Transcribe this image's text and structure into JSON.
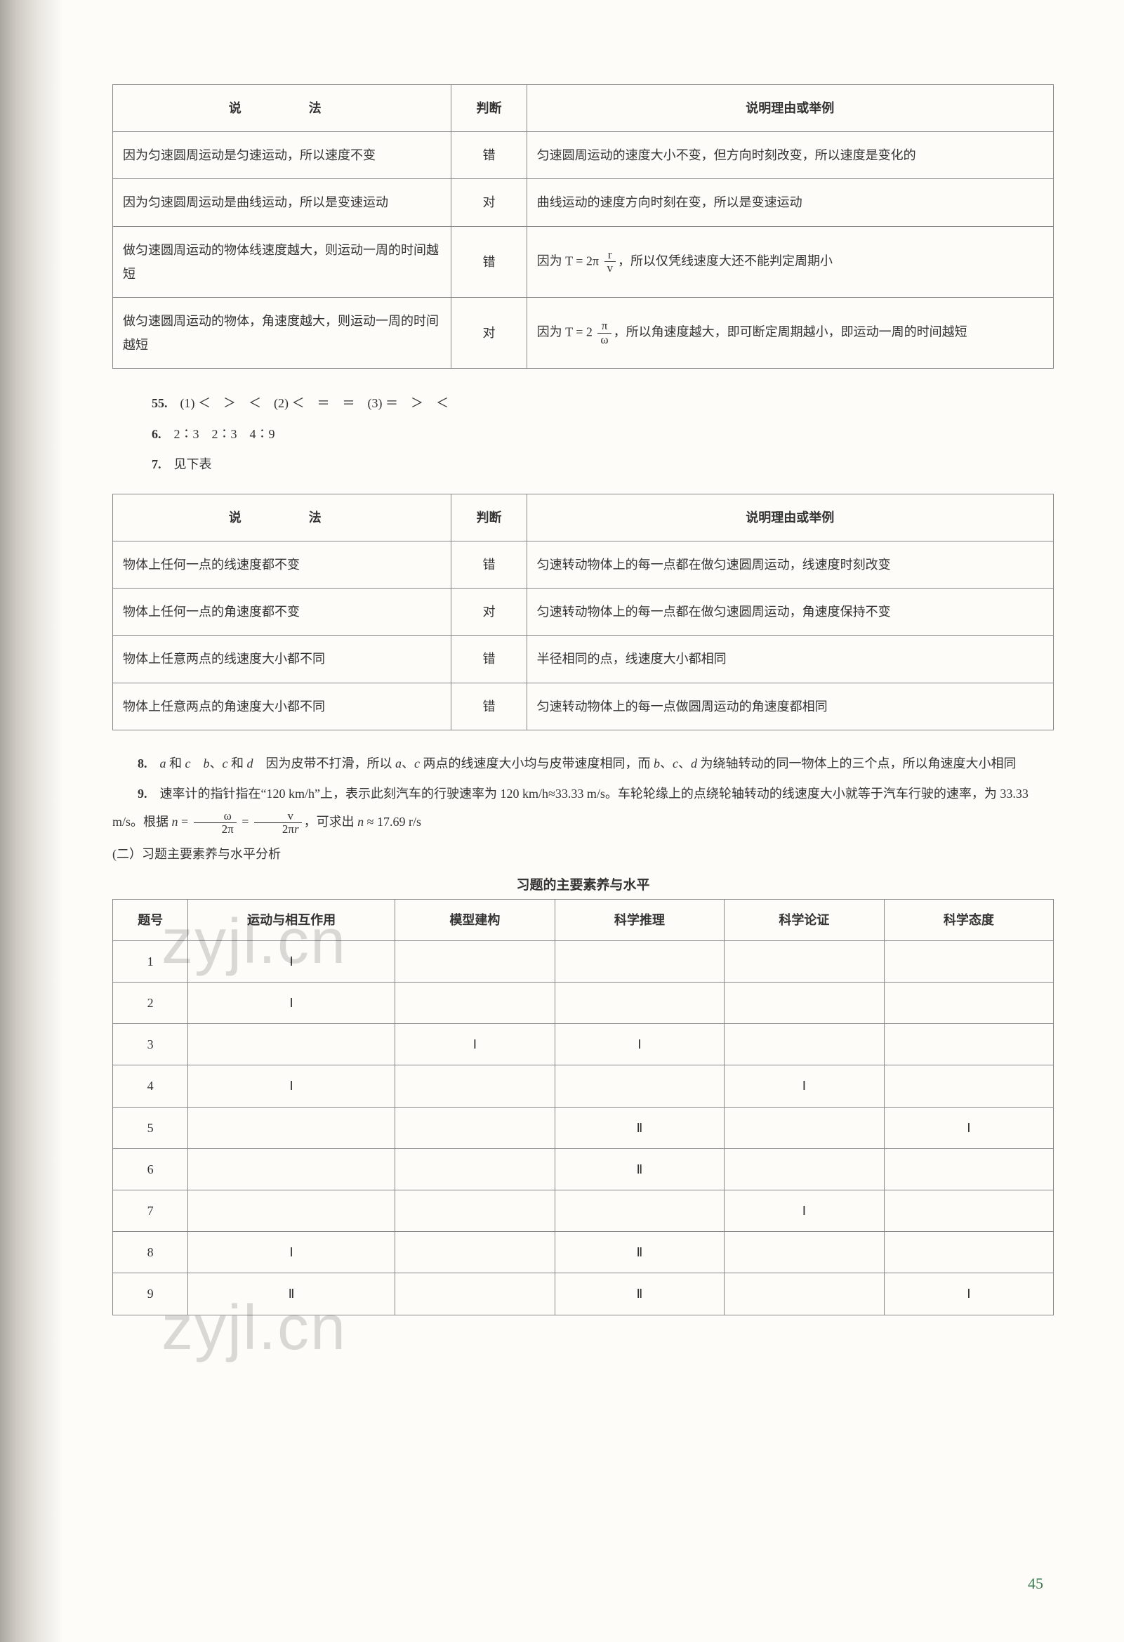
{
  "table1": {
    "headers": [
      "说　　法",
      "判断",
      "说明理由或举例"
    ],
    "rows": [
      {
        "stmt": "因为匀速圆周运动是匀速运动，所以速度不变",
        "judge": "错",
        "reason": "匀速圆周运动的速度大小不变，但方向时刻改变，所以速度是变化的"
      },
      {
        "stmt": "因为匀速圆周运动是曲线运动，所以是变速运动",
        "judge": "对",
        "reason": "曲线运动的速度方向时刻在变，所以是变速运动"
      },
      {
        "stmt": "做匀速圆周运动的物体线速度越大，则运动一周的时间越短",
        "judge": "错",
        "reason_html": "因为 T = 2π <span class='frac'><span class='num'>r</span><span class='den'>v</span></span>，所以仅凭线速度大还不能判定周期小"
      },
      {
        "stmt": "做匀速圆周运动的物体，角速度越大，则运动一周的时间越短",
        "judge": "对",
        "reason_html": "因为 T = 2 <span class='frac'><span class='num'>π</span><span class='den'>ω</span></span>，所以角速度越大，即可断定周期越小，即运动一周的时间越短"
      }
    ]
  },
  "answers": {
    "q5": "5.　(1) ＜　＞　＜　(2) ＜　＝　＝　(3) ＝　＞　＜",
    "q6": "6.　2∶3　2∶3　4∶9",
    "q7": "7.　见下表"
  },
  "table2": {
    "headers": [
      "说　　法",
      "判断",
      "说明理由或举例"
    ],
    "rows": [
      {
        "stmt": "物体上任何一点的线速度都不变",
        "judge": "错",
        "reason": "匀速转动物体上的每一点都在做匀速圆周运动，线速度时刻改变"
      },
      {
        "stmt": "物体上任何一点的角速度都不变",
        "judge": "对",
        "reason": "匀速转动物体上的每一点都在做匀速圆周运动，角速度保持不变"
      },
      {
        "stmt": "物体上任意两点的线速度大小都不同",
        "judge": "错",
        "reason": "半径相同的点，线速度大小都相同"
      },
      {
        "stmt": "物体上任意两点的角速度大小都不同",
        "judge": "错",
        "reason": "匀速转动物体上的每一点做圆周运动的角速度都相同"
      }
    ]
  },
  "para8_prefix": "8.　",
  "para8_html": "<i>a</i> 和 <i>c</i>　<i>b</i>、<i>c</i> 和 <i>d</i>　因为皮带不打滑，所以 <i>a</i>、<i>c</i> 两点的线速度大小均与皮带速度相同，而 <i>b</i>、<i>c</i>、<i>d</i> 为绕轴转动的同一物体上的三个点，所以角速度大小相同",
  "para9_prefix": "9.　",
  "para9_html": "速率计的指针指在“120 km/h”上，表示此刻汽车的行驶速率为 120 km/h≈33.33 m/s。车轮轮缘上的点绕轮轴转动的线速度大小就等于汽车行驶的速率，为 33.33 m/s。根据 <i>n</i> = <span class='frac'><span class='num'>ω</span><span class='den'>2π</span></span> = <span class='frac'><span class='num'>v</span><span class='den'>2π<i>r</i></span></span>，可求出 <i>n</i> ≈ 17.69 r/s",
  "subsection": "(二）习题主要素养与水平分析",
  "table3_title": "习题的主要素养与水平",
  "table3": {
    "headers": [
      "题号",
      "运动与相互作用",
      "模型建构",
      "科学推理",
      "科学论证",
      "科学态度"
    ],
    "rows": [
      [
        "1",
        "Ⅰ",
        "",
        "",
        "",
        ""
      ],
      [
        "2",
        "Ⅰ",
        "",
        "",
        "",
        ""
      ],
      [
        "3",
        "",
        "Ⅰ",
        "Ⅰ",
        "",
        ""
      ],
      [
        "4",
        "Ⅰ",
        "",
        "",
        "Ⅰ",
        ""
      ],
      [
        "5",
        "",
        "",
        "Ⅱ",
        "",
        "Ⅰ"
      ],
      [
        "6",
        "",
        "",
        "Ⅱ",
        "",
        ""
      ],
      [
        "7",
        "",
        "",
        "",
        "Ⅰ",
        ""
      ],
      [
        "8",
        "Ⅰ",
        "",
        "Ⅱ",
        "",
        ""
      ],
      [
        "9",
        "Ⅱ",
        "",
        "Ⅱ",
        "",
        "Ⅰ"
      ]
    ]
  },
  "page_number": "45",
  "watermark": "zyjl.cn"
}
